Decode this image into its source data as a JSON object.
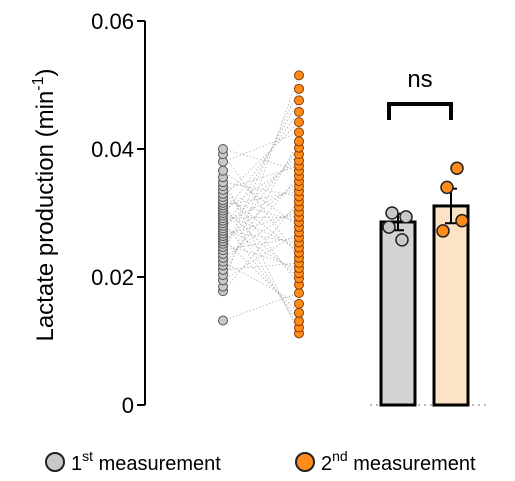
{
  "colors": {
    "first_point": "#c8c8c8",
    "second_point": "#ff8c1a",
    "first_bar": "#d3d3d3",
    "second_bar": "#fde3c6",
    "pair_line": "#b0b0b0",
    "axis": "#000000"
  },
  "chart_data": [
    {
      "type": "scatter",
      "subtype": "paired-dot-plot",
      "ylabel": "Lactate production (min",
      "ylabel_sup": "-1",
      "ylabel_close": ")",
      "ylim": [
        0,
        0.06
      ],
      "yticks": [
        "0",
        "0.02",
        "0.04",
        "0.06"
      ],
      "series": [
        {
          "name": "1st measurement",
          "values": [
            0.0132,
            0.0178,
            0.0185,
            0.0195,
            0.0203,
            0.0211,
            0.0218,
            0.0224,
            0.023,
            0.0236,
            0.0242,
            0.0247,
            0.0252,
            0.0256,
            0.026,
            0.0264,
            0.0268,
            0.0272,
            0.0276,
            0.028,
            0.0284,
            0.0288,
            0.0292,
            0.0296,
            0.03,
            0.0304,
            0.0308,
            0.0312,
            0.0316,
            0.032,
            0.0325,
            0.033,
            0.0336,
            0.0342,
            0.0348,
            0.0356,
            0.0366,
            0.038,
            0.0392,
            0.04
          ]
        },
        {
          "name": "2nd measurement",
          "values": [
            0.0112,
            0.0121,
            0.0131,
            0.0144,
            0.0158,
            0.0175,
            0.0188,
            0.0198,
            0.0206,
            0.0214,
            0.0222,
            0.023,
            0.0238,
            0.0246,
            0.0254,
            0.0262,
            0.027,
            0.0278,
            0.0286,
            0.0294,
            0.0302,
            0.031,
            0.0318,
            0.0326,
            0.0334,
            0.0342,
            0.035,
            0.0358,
            0.0366,
            0.0374,
            0.0382,
            0.0392,
            0.0402,
            0.0412,
            0.0426,
            0.0442,
            0.0458,
            0.0476,
            0.0494,
            0.0515
          ]
        }
      ]
    },
    {
      "type": "bar",
      "categories": [
        "1st measurement",
        "2nd measurement"
      ],
      "values": [
        0.0286,
        0.0311
      ],
      "error": [
        0.0013,
        0.0027
      ],
      "points": [
        [
          0.03,
          0.0294,
          0.0278,
          0.0258
        ],
        [
          0.037,
          0.034,
          0.0288,
          0.0272
        ]
      ],
      "significance": "ns"
    }
  ],
  "legend": {
    "items": [
      {
        "base": "1",
        "sup": "st",
        "rest": " measurement"
      },
      {
        "base": "2",
        "sup": "nd",
        "rest": " measurement"
      }
    ]
  }
}
